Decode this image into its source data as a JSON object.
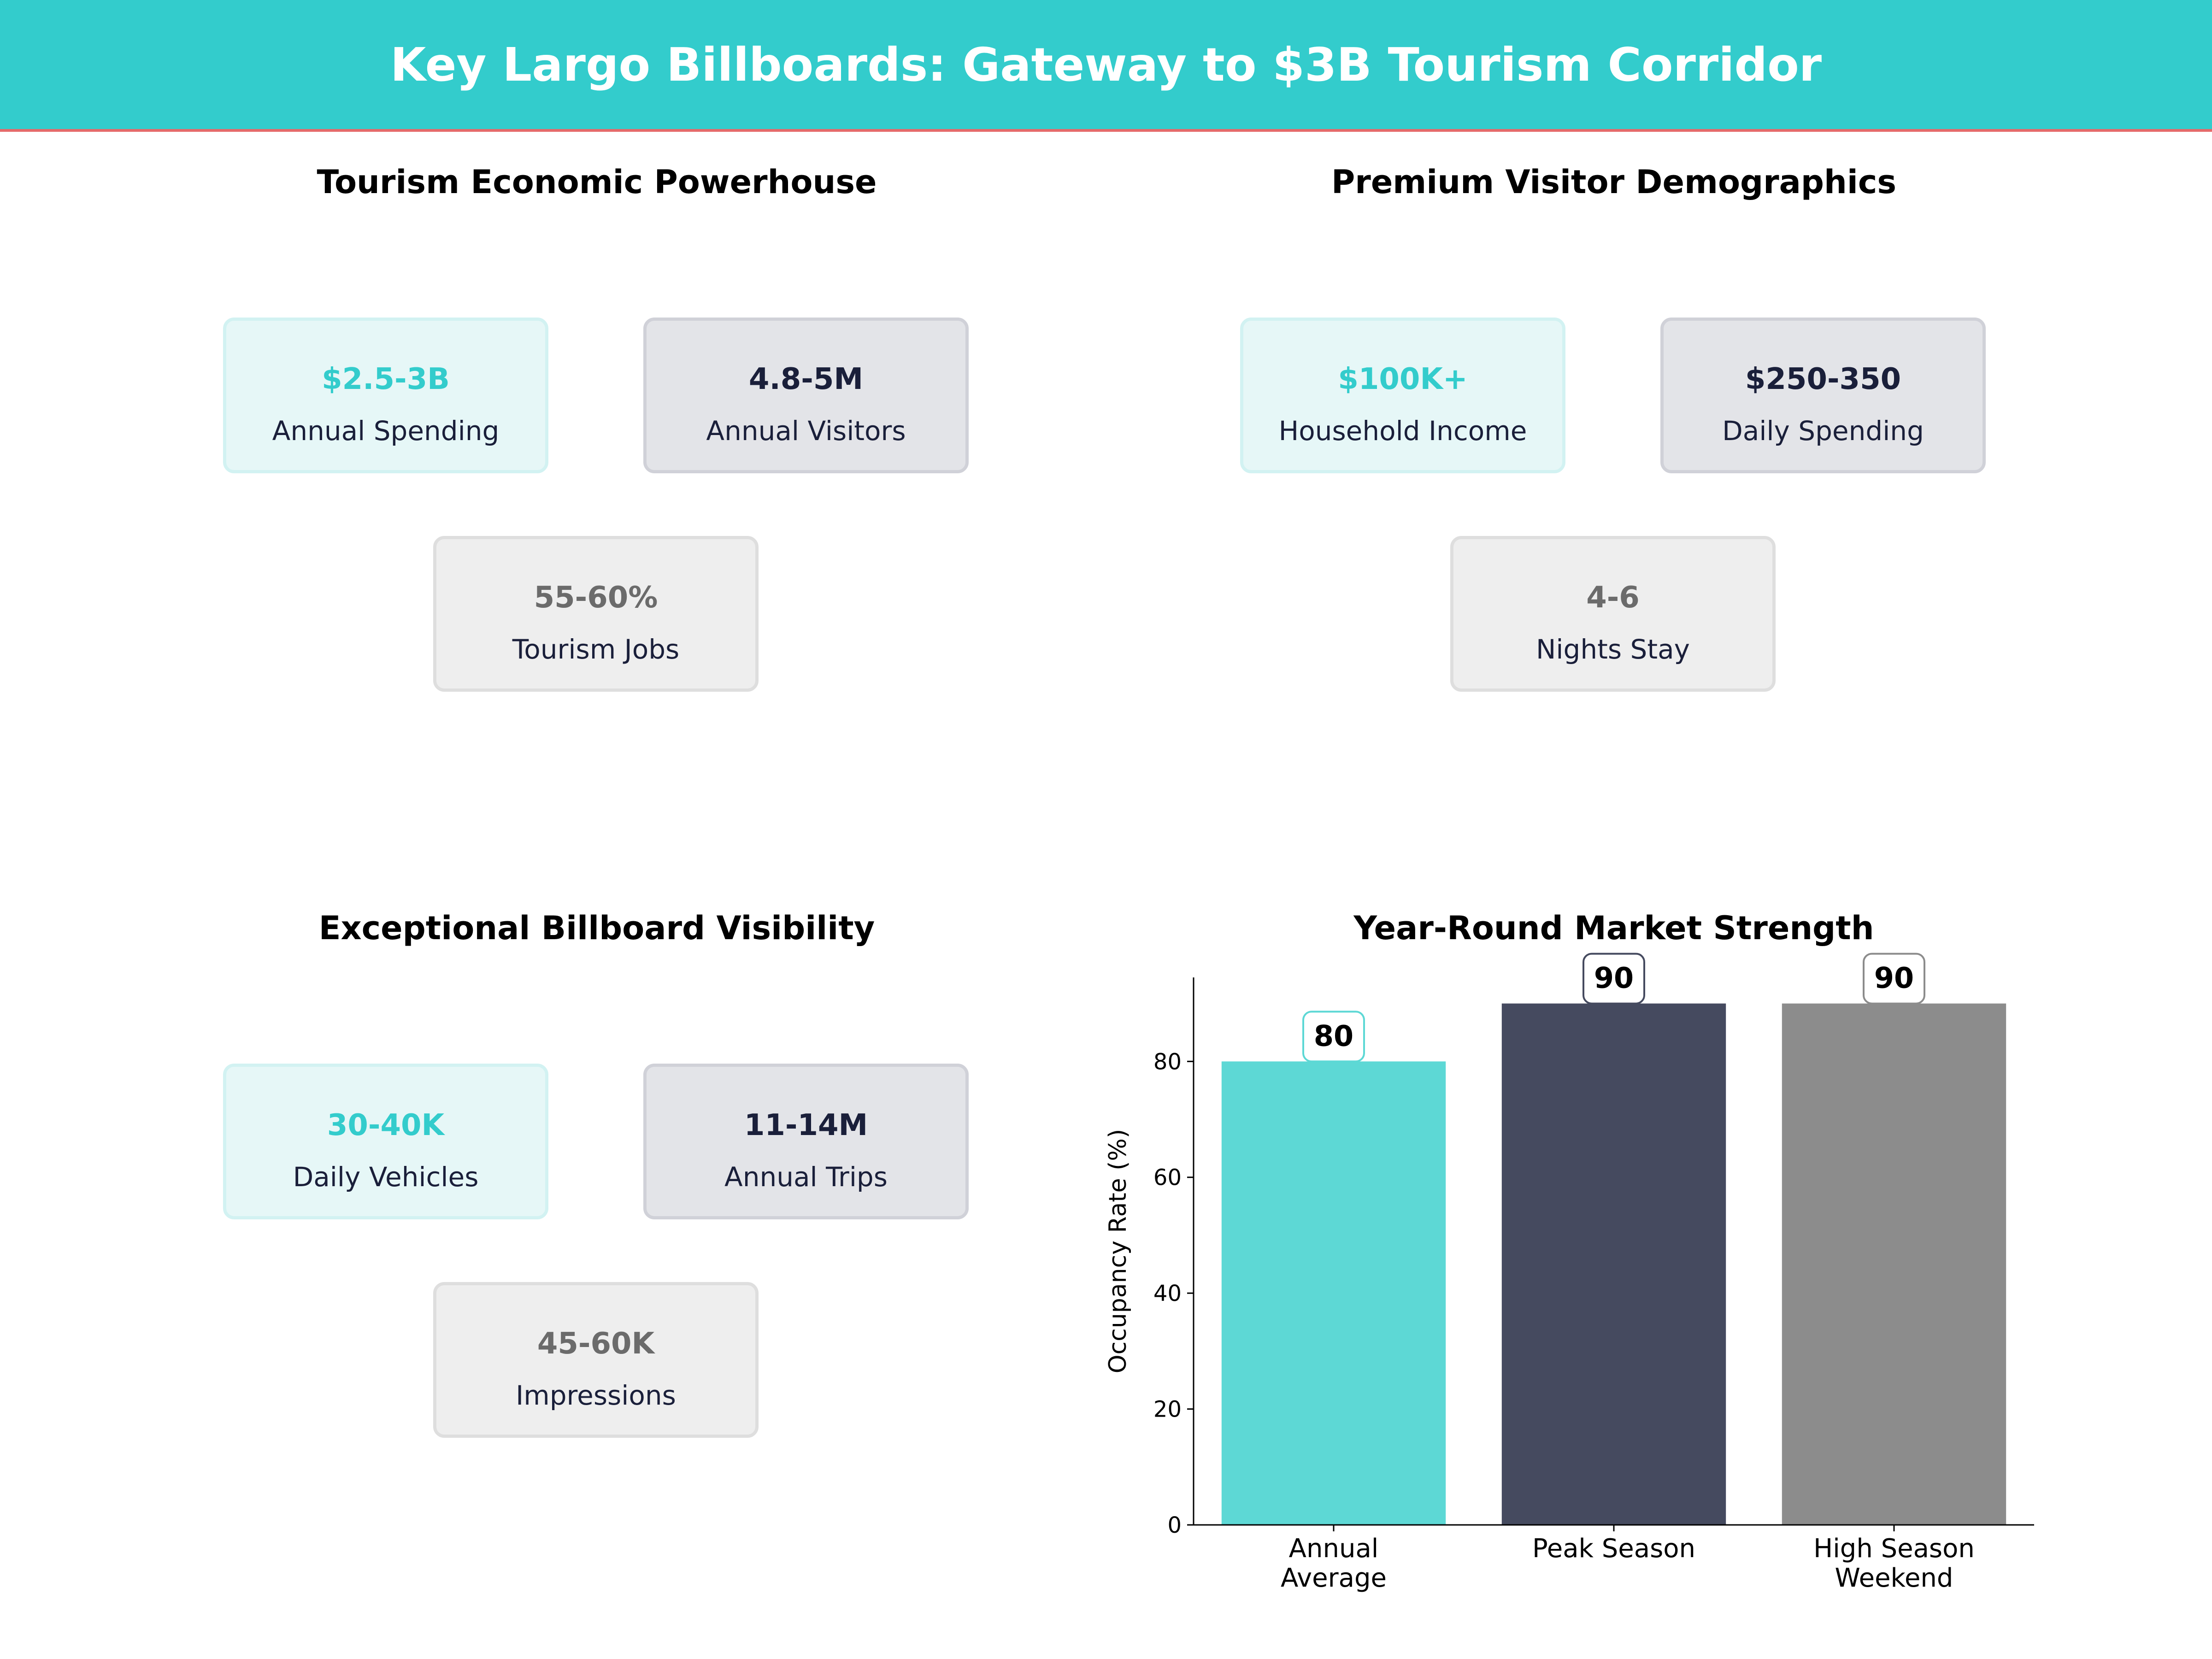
{
  "header": {
    "title": "Key Largo Billboards: Gateway to $3B Tourism Corridor"
  },
  "colors": {
    "header": "#33cccc",
    "accent_line": "#e46a6a",
    "teal": "#5dd8d5",
    "navy": "#454a5f",
    "gray": "#8c8c8c"
  },
  "panels": [
    {
      "title": "Tourism Economic Powerhouse",
      "cards": [
        {
          "value": "$2.5-3B",
          "label": "Annual Spending",
          "style": "teal"
        },
        {
          "value": "4.8-5M",
          "label": "Annual Visitors",
          "style": "dark"
        },
        {
          "value": "55-60%",
          "label": "Tourism Jobs",
          "style": "gray"
        }
      ]
    },
    {
      "title": "Premium Visitor Demographics",
      "cards": [
        {
          "value": "$100K+",
          "label": "Household Income",
          "style": "teal"
        },
        {
          "value": "$250-350",
          "label": "Daily Spending",
          "style": "dark"
        },
        {
          "value": "4-6",
          "label": "Nights Stay",
          "style": "gray"
        }
      ]
    },
    {
      "title": "Exceptional Billboard Visibility",
      "cards": [
        {
          "value": "30-40K",
          "label": "Daily Vehicles",
          "style": "teal"
        },
        {
          "value": "11-14M",
          "label": "Annual Trips",
          "style": "dark"
        },
        {
          "value": "45-60K",
          "label": "Impressions",
          "style": "gray"
        }
      ]
    }
  ],
  "chart_data": {
    "type": "bar",
    "title": "Year-Round Market Strength",
    "ylabel": "Occupancy Rate (%)",
    "xlabel": "",
    "categories": [
      [
        "Annual",
        "Average"
      ],
      [
        "Peak Season"
      ],
      [
        "High Season",
        "Weekend"
      ]
    ],
    "values": [
      80,
      90,
      90
    ],
    "bar_colors": [
      "#5dd8d5",
      "#454a5f",
      "#8c8c8c"
    ],
    "data_labels": [
      "80",
      "90",
      "90"
    ],
    "yticks": [
      0,
      20,
      40,
      60,
      80
    ],
    "ylim": [
      0,
      94.5
    ],
    "grid": false
  }
}
